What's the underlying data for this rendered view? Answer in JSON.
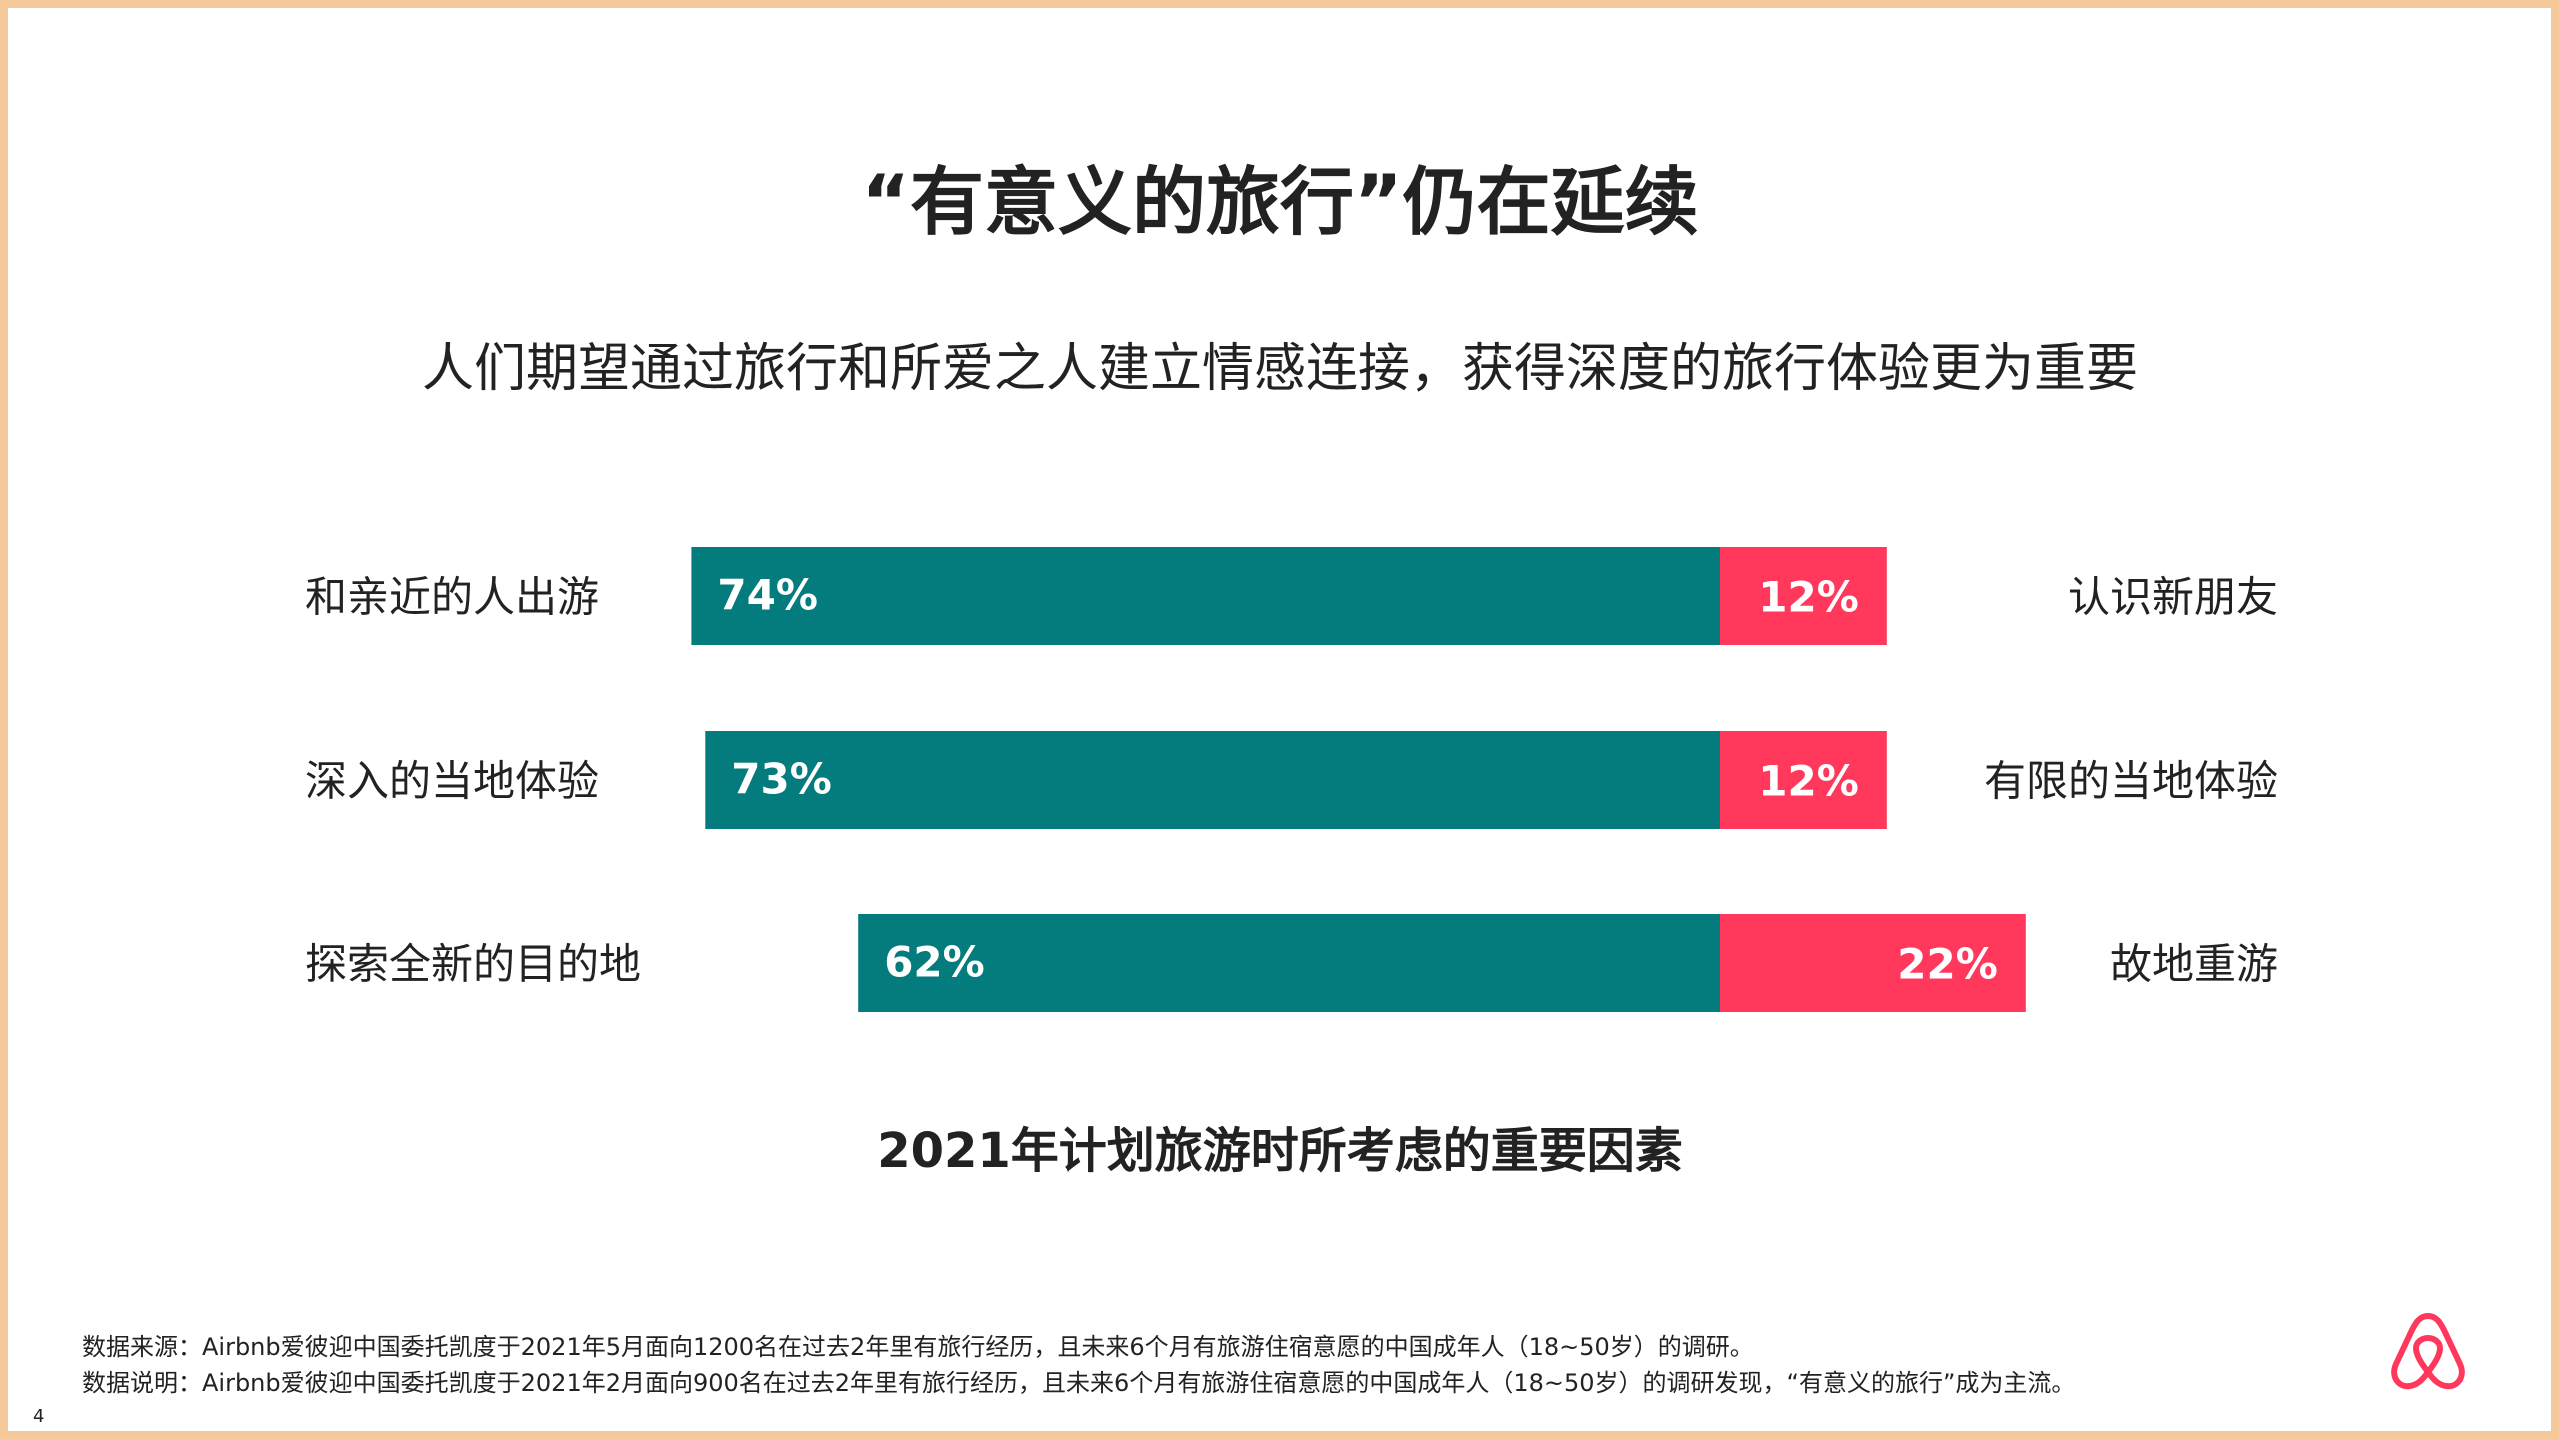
{
  "chart_data": {
    "type": "diverging_bar",
    "title": "“有意义的旅行”仍在延续",
    "subtitle": "人们期望通过旅行和所爱之人建立情感连接，获得深度的旅行体验更为重要",
    "caption": "2021年计划旅游时所考虑的重要因素",
    "categories": [
      "和亲近的人出游",
      "深入的当地体验",
      "探索全新的目的地"
    ],
    "categories_right": [
      "认识新朋友",
      "有限的当地体验",
      "故地重游"
    ],
    "series": [
      {
        "color": "#047b7d",
        "values": [
          74,
          73,
          62
        ],
        "value_labels": [
          "74%",
          "73%",
          "62%"
        ]
      },
      {
        "color": "#ff385c",
        "values": [
          12,
          12,
          22
        ],
        "value_labels": [
          "12%",
          "12%",
          "22%"
        ]
      }
    ]
  },
  "footnotes": [
    "数据来源：Airbnb爱彼迎中国委托凯度于2021年5月面向1200名在过去2年里有旅行经历，且未来6个月有旅游住宿意愿的中国成年人（18~50岁）的调研。",
    "数据说明：Airbnb爱彼迎中国委托凯度于2021年2月面向900名在过去2年里有旅行经历，且未来6个月有旅游住宿意愿的中国成年人（18~50岁）的调研发现，“有意义的旅行”成为主流。"
  ],
  "page_number": "4"
}
